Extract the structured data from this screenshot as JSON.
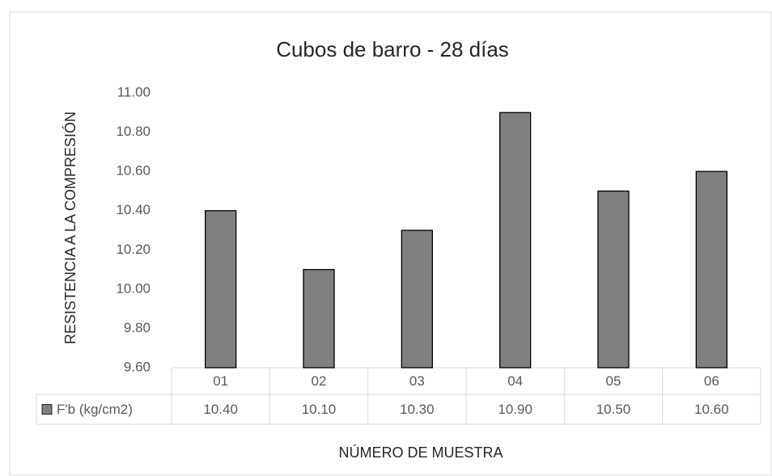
{
  "chart_data": {
    "type": "bar",
    "title": "Cubos de barro - 28 días",
    "y_label": "RESISTENCIA A LA COMPRESIÓN",
    "x_label": "NÚMERO DE MUESTRA",
    "categories": [
      "01",
      "02",
      "03",
      "04",
      "05",
      "06"
    ],
    "series": [
      {
        "name": "F'b (kg/cm2)",
        "color": "#808080",
        "values": [
          10.4,
          10.1,
          10.3,
          10.9,
          10.5,
          10.6
        ],
        "value_labels": [
          "10.40",
          "10.10",
          "10.30",
          "10.90",
          "10.50",
          "10.60"
        ]
      }
    ],
    "ylim": [
      9.6,
      11.0
    ],
    "yticks": [
      {
        "value": 9.6,
        "label": "9.60"
      },
      {
        "value": 9.8,
        "label": "9.80"
      },
      {
        "value": 10.0,
        "label": "10.00"
      },
      {
        "value": 10.2,
        "label": "10.20"
      },
      {
        "value": 10.4,
        "label": "10.40"
      },
      {
        "value": 10.6,
        "label": "10.60"
      },
      {
        "value": 10.8,
        "label": "10.80"
      },
      {
        "value": 11.0,
        "label": "11.00"
      }
    ],
    "grid": false,
    "data_table": true
  }
}
